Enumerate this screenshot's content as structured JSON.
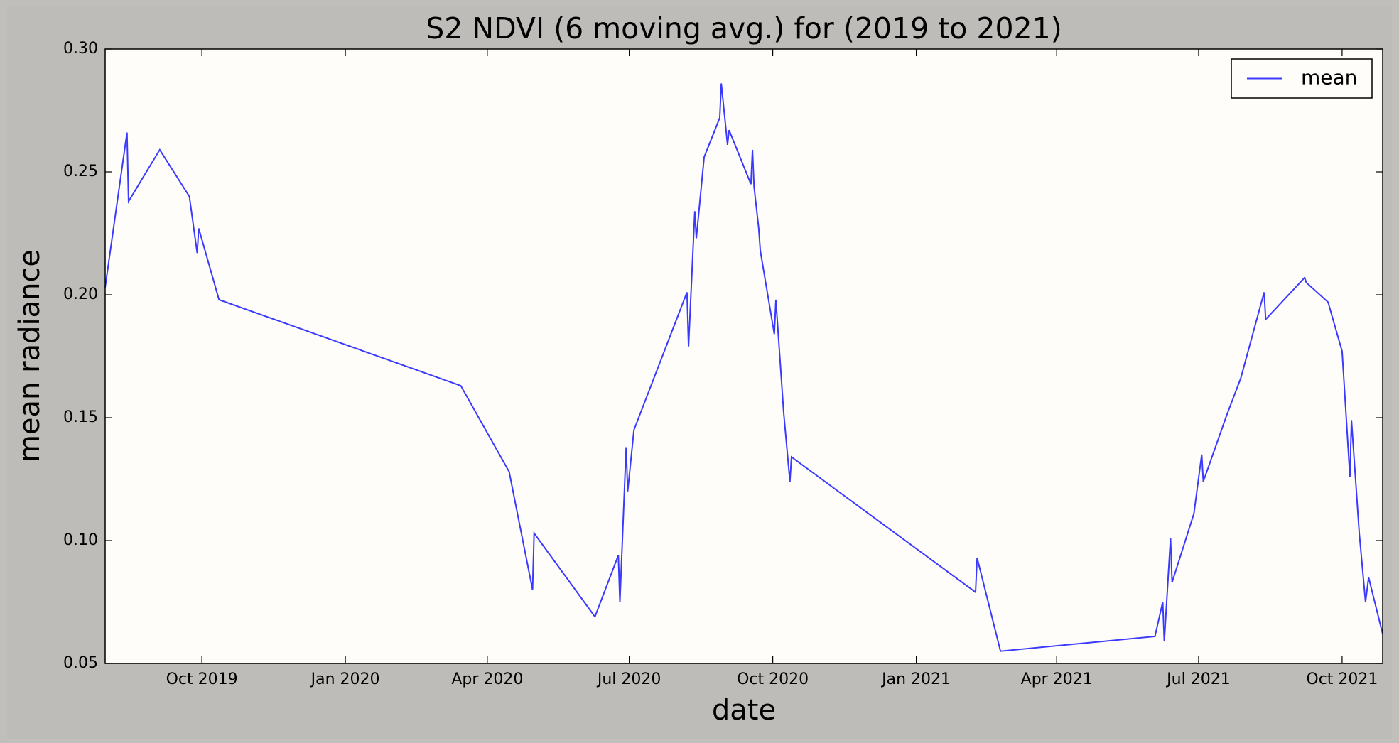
{
  "chart_data": {
    "type": "line",
    "title": "S2 NDVI (6 moving avg.) for (2019 to 2021)",
    "xlabel": "date",
    "ylabel": "mean radiance",
    "x": [
      "2019-07-31",
      "2019-08-14",
      "2019-08-15",
      "2019-09-04",
      "2019-09-05",
      "2019-09-23",
      "2019-09-28",
      "2019-09-29",
      "2019-10-12",
      "2020-03-15",
      "2020-04-15",
      "2020-04-30",
      "2020-05-01",
      "2020-06-09",
      "2020-06-24",
      "2020-06-25",
      "2020-06-29",
      "2020-06-30",
      "2020-07-04",
      "2020-08-07",
      "2020-08-08",
      "2020-08-12",
      "2020-08-13",
      "2020-08-18",
      "2020-08-28",
      "2020-08-29",
      "2020-09-02",
      "2020-09-03",
      "2020-09-17",
      "2020-09-18",
      "2020-09-19",
      "2020-09-22",
      "2020-09-23",
      "2020-10-02",
      "2020-10-03",
      "2020-10-08",
      "2020-10-12",
      "2020-10-13",
      "2021-02-08",
      "2021-02-09",
      "2021-02-24",
      "2021-06-03",
      "2021-06-08",
      "2021-06-09",
      "2021-06-13",
      "2021-06-14",
      "2021-06-28",
      "2021-07-03",
      "2021-07-04",
      "2021-07-19",
      "2021-07-28",
      "2021-08-12",
      "2021-08-13",
      "2021-09-07",
      "2021-09-08",
      "2021-09-22",
      "2021-10-01",
      "2021-10-06",
      "2021-10-07",
      "2021-10-12",
      "2021-10-16",
      "2021-10-18",
      "2021-10-27"
    ],
    "series": [
      {
        "name": "mean",
        "color": "#3a3aff",
        "values": [
          0.203,
          0.266,
          0.238,
          0.259,
          0.258,
          0.24,
          0.217,
          0.227,
          0.198,
          0.163,
          0.128,
          0.08,
          0.103,
          0.069,
          0.094,
          0.075,
          0.138,
          0.12,
          0.145,
          0.201,
          0.179,
          0.234,
          0.223,
          0.256,
          0.272,
          0.286,
          0.261,
          0.267,
          0.245,
          0.259,
          0.244,
          0.227,
          0.218,
          0.184,
          0.198,
          0.152,
          0.124,
          0.134,
          0.079,
          0.093,
          0.055,
          0.061,
          0.075,
          0.059,
          0.101,
          0.083,
          0.111,
          0.135,
          0.124,
          0.151,
          0.166,
          0.201,
          0.19,
          0.207,
          0.205,
          0.197,
          0.177,
          0.126,
          0.149,
          0.103,
          0.075,
          0.085,
          0.062
        ]
      }
    ],
    "xlim": [
      "2019-07-31",
      "2021-10-27"
    ],
    "xticks": [
      {
        "value": "2019-10-01",
        "label": "Oct 2019"
      },
      {
        "value": "2020-01-01",
        "label": "Jan 2020"
      },
      {
        "value": "2020-04-01",
        "label": "Apr 2020"
      },
      {
        "value": "2020-07-01",
        "label": "Jul 2020"
      },
      {
        "value": "2020-10-01",
        "label": "Oct 2020"
      },
      {
        "value": "2021-01-01",
        "label": "Jan 2021"
      },
      {
        "value": "2021-04-01",
        "label": "Apr 2021"
      },
      {
        "value": "2021-07-01",
        "label": "Jul 2021"
      },
      {
        "value": "2021-10-01",
        "label": "Oct 2021"
      }
    ],
    "ylim": [
      0.05,
      0.3
    ],
    "yticks": [
      {
        "value": 0.05,
        "label": "0.05"
      },
      {
        "value": 0.1,
        "label": "0.10"
      },
      {
        "value": 0.15,
        "label": "0.15"
      },
      {
        "value": 0.2,
        "label": "0.20"
      },
      {
        "value": 0.25,
        "label": "0.25"
      },
      {
        "value": 0.3,
        "label": "0.30"
      }
    ],
    "legend": "upper right"
  }
}
